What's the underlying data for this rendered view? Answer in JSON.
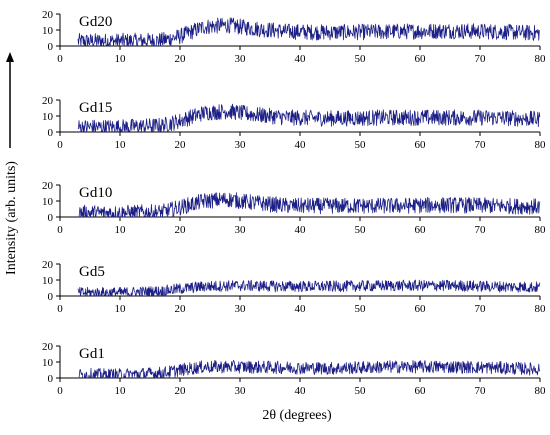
{
  "figure": {
    "ylabel": "Intensity (arb. units)",
    "xlabel": "2θ (degrees)"
  },
  "colors": {
    "trace": "#1c1f86",
    "axis": "#000000"
  },
  "chart_data": {
    "type": "line",
    "title": "",
    "xlabel": "2θ (degrees)",
    "ylabel": "Intensity (arb. units)",
    "xlim": [
      0,
      80
    ],
    "ylim": [
      0,
      20
    ],
    "x_ticks": [
      "0",
      "10",
      "20",
      "30",
      "40",
      "50",
      "60",
      "70",
      "80"
    ],
    "y_ticks": [
      "0",
      "10",
      "20"
    ],
    "grid": false,
    "legend": "none",
    "x_start": 3,
    "x_end": 80,
    "series": [
      {
        "name": "Gd20",
        "profile": [
          [
            3,
            3
          ],
          [
            10,
            3
          ],
          [
            17,
            3.5
          ],
          [
            20,
            6
          ],
          [
            24,
            12
          ],
          [
            28,
            13
          ],
          [
            32,
            11
          ],
          [
            38,
            9
          ],
          [
            45,
            8.5
          ],
          [
            55,
            9
          ],
          [
            65,
            9.5
          ],
          [
            72,
            9
          ],
          [
            80,
            8
          ]
        ],
        "noise": 5
      },
      {
        "name": "Gd15",
        "profile": [
          [
            3,
            3
          ],
          [
            10,
            3
          ],
          [
            17,
            4
          ],
          [
            20,
            7
          ],
          [
            24,
            12
          ],
          [
            28,
            13
          ],
          [
            32,
            11
          ],
          [
            38,
            9
          ],
          [
            45,
            8.5
          ],
          [
            55,
            9
          ],
          [
            65,
            9
          ],
          [
            72,
            9
          ],
          [
            80,
            8
          ]
        ],
        "noise": 5
      },
      {
        "name": "Gd10",
        "profile": [
          [
            3,
            2.5
          ],
          [
            10,
            2.5
          ],
          [
            17,
            3
          ],
          [
            20,
            6
          ],
          [
            24,
            10
          ],
          [
            28,
            11
          ],
          [
            32,
            9
          ],
          [
            38,
            7
          ],
          [
            45,
            7
          ],
          [
            55,
            7
          ],
          [
            65,
            7.5
          ],
          [
            72,
            7
          ],
          [
            80,
            6.5
          ]
        ],
        "noise": 5
      },
      {
        "name": "Gd5",
        "profile": [
          [
            3,
            2
          ],
          [
            10,
            2
          ],
          [
            17,
            3
          ],
          [
            20,
            4.5
          ],
          [
            24,
            6
          ],
          [
            30,
            6.5
          ],
          [
            38,
            6
          ],
          [
            45,
            6
          ],
          [
            55,
            6.5
          ],
          [
            65,
            6.5
          ],
          [
            72,
            6
          ],
          [
            80,
            5.5
          ]
        ],
        "noise": 3.5
      },
      {
        "name": "Gd1",
        "profile": [
          [
            3,
            2
          ],
          [
            10,
            2
          ],
          [
            17,
            3
          ],
          [
            20,
            5
          ],
          [
            24,
            7
          ],
          [
            30,
            7
          ],
          [
            38,
            6.5
          ],
          [
            45,
            6
          ],
          [
            55,
            7
          ],
          [
            65,
            7
          ],
          [
            72,
            6.5
          ],
          [
            80,
            5.5
          ]
        ],
        "noise": 4
      }
    ]
  }
}
